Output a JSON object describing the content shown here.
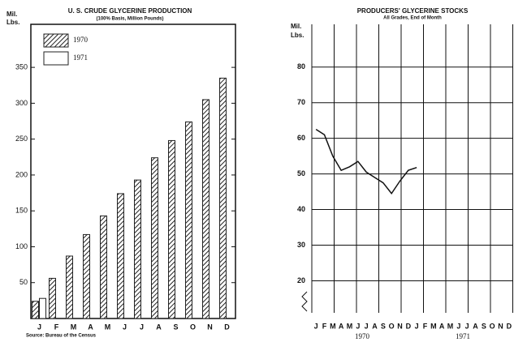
{
  "chart_data": [
    {
      "type": "bar",
      "title": "U. S. CRUDE GLYCERINE PRODUCTION",
      "subtitle": "(100% Basis, Million Pounds)",
      "y_label_lines": [
        "Mil.",
        "Lbs."
      ],
      "source": "Source: Bureau of the Census",
      "categories": [
        "J",
        "F",
        "M",
        "A",
        "M",
        "J",
        "J",
        "A",
        "S",
        "O",
        "N",
        "D"
      ],
      "series": [
        {
          "name": "1970",
          "color": "#222222",
          "hatch": true,
          "values": [
            24,
            56,
            87,
            117,
            143,
            174,
            193,
            224,
            248,
            274,
            305,
            335
          ]
        },
        {
          "name": "1971",
          "color": "#222222",
          "hatch": false,
          "values": [
            28,
            null,
            null,
            null,
            null,
            null,
            null,
            null,
            null,
            null,
            null,
            null
          ]
        }
      ],
      "ylim": [
        0,
        410
      ],
      "yticks": [
        50,
        100,
        150,
        200,
        250,
        300,
        350
      ],
      "legend": "top-left"
    },
    {
      "type": "line",
      "title": "PRODUCERS' GLYCERINE STOCKS",
      "subtitle": "All Grades, End of Month",
      "y_label_lines": [
        "Mil.",
        "Lbs."
      ],
      "categories": [
        "J",
        "F",
        "M",
        "A",
        "M",
        "J",
        "J",
        "A",
        "S",
        "O",
        "N",
        "D",
        "J",
        "F",
        "M",
        "A",
        "M",
        "J",
        "J",
        "A",
        "S",
        "O",
        "N",
        "D"
      ],
      "years": [
        "1970",
        "1971"
      ],
      "series": [
        {
          "name": "Stocks",
          "color": "#111111",
          "values": [
            62.5,
            61,
            55,
            51,
            52,
            53.5,
            50.5,
            49,
            47.5,
            44.5,
            48,
            51,
            51.8,
            null,
            null,
            null,
            null,
            null,
            null,
            null,
            null,
            null,
            null,
            null
          ]
        }
      ],
      "ylim": [
        11,
        92
      ],
      "yticks": [
        20,
        30,
        40,
        50,
        60,
        70,
        80
      ],
      "grid": true
    }
  ]
}
